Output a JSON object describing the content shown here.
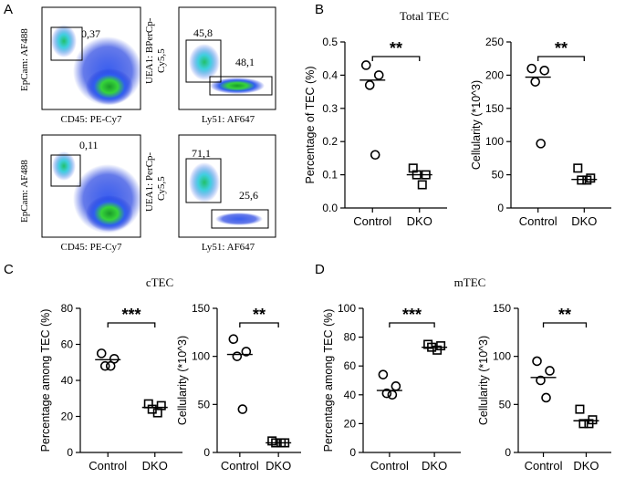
{
  "panel_letters": {
    "a": "A",
    "b": "B",
    "c": "C",
    "d": "D"
  },
  "flow": {
    "plots": [
      {
        "gate_label": "0,37",
        "y_axis": "EpCam: AF488",
        "x_axis": "CD45: PE-Cy7"
      },
      {
        "gate_label_1": "45,8",
        "gate_label_2": "48,1",
        "y_axis_1": "UEA1: BPerCp-",
        "y_axis_2": "Cy5,5",
        "x_axis": "Ly51: AF647"
      },
      {
        "gate_label": "0,11",
        "y_axis": "EpCam: AF488",
        "x_axis": "CD45: PE-Cy7"
      },
      {
        "gate_label_1": "71,1",
        "gate_label_2": "25,6",
        "y_axis_1": "UEA1: PerCp-",
        "y_axis_2": "Cy5,5",
        "x_axis": "Ly51: AF647"
      }
    ]
  },
  "section_titles": {
    "total": "Total TEC",
    "ctec": "cTEC",
    "mtec": "mTEC"
  },
  "colors": {
    "point": "#000000",
    "axis": "#000000",
    "flow_high": "#1fc81f",
    "flow_low": "#1a2fd8"
  },
  "chart_data": [
    {
      "id": "b1",
      "type": "scatter",
      "title": "Total TEC",
      "xlabel": "",
      "ylabel": "Percentage of TEC (%)",
      "categories": [
        "Control",
        "DKO"
      ],
      "ylim": [
        0,
        0.5
      ],
      "yticks": [
        "0.0",
        "0.1",
        "0.2",
        "0.3",
        "0.4",
        "0.5"
      ],
      "ytick_values": [
        0,
        0.1,
        0.2,
        0.3,
        0.4,
        0.5
      ],
      "series": [
        {
          "name": "Control",
          "marker": "circle",
          "values": [
            0.43,
            0.4,
            0.37,
            0.16
          ]
        },
        {
          "name": "DKO",
          "marker": "square",
          "values": [
            0.12,
            0.1,
            0.1,
            0.07
          ]
        }
      ],
      "means": [
        0.385,
        0.1
      ],
      "significance": "**"
    },
    {
      "id": "b2",
      "type": "scatter",
      "title": "",
      "xlabel": "",
      "ylabel": "Cellularity (*10^3)",
      "categories": [
        "Control",
        "DKO"
      ],
      "ylim": [
        0,
        250
      ],
      "yticks": [
        "0",
        "50",
        "100",
        "150",
        "200",
        "250"
      ],
      "ytick_values": [
        0,
        50,
        100,
        150,
        200,
        250
      ],
      "series": [
        {
          "name": "Control",
          "marker": "circle",
          "values": [
            210,
            207,
            190,
            97
          ]
        },
        {
          "name": "DKO",
          "marker": "square",
          "values": [
            60,
            45,
            42,
            42
          ]
        }
      ],
      "means": [
        197,
        43
      ],
      "significance": "**"
    },
    {
      "id": "c1",
      "type": "scatter",
      "title": "cTEC",
      "xlabel": "",
      "ylabel": "Percentage among TEC (%)",
      "categories": [
        "Control",
        "DKO"
      ],
      "ylim": [
        0,
        80
      ],
      "yticks": [
        "0",
        "20",
        "40",
        "60",
        "80"
      ],
      "ytick_values": [
        0,
        20,
        40,
        60,
        80
      ],
      "series": [
        {
          "name": "Control",
          "marker": "circle",
          "values": [
            55,
            52,
            48,
            48
          ]
        },
        {
          "name": "DKO",
          "marker": "square",
          "values": [
            27,
            26,
            24,
            22
          ]
        }
      ],
      "means": [
        51.5,
        25
      ],
      "significance": "***"
    },
    {
      "id": "c2",
      "type": "scatter",
      "title": "",
      "xlabel": "",
      "ylabel": "Cellularity (*10^3)",
      "categories": [
        "Control",
        "DKO"
      ],
      "ylim": [
        0,
        150
      ],
      "yticks": [
        "0",
        "50",
        "100",
        "150"
      ],
      "ytick_values": [
        0,
        50,
        100,
        150
      ],
      "series": [
        {
          "name": "Control",
          "marker": "circle",
          "values": [
            118,
            105,
            100,
            45
          ]
        },
        {
          "name": "DKO",
          "marker": "square",
          "values": [
            12,
            10,
            10,
            10
          ]
        }
      ],
      "means": [
        102,
        10
      ],
      "significance": "**"
    },
    {
      "id": "d1",
      "type": "scatter",
      "title": "mTEC",
      "xlabel": "",
      "ylabel": "Percentage among TEC (%)",
      "categories": [
        "Control",
        "DKO"
      ],
      "ylim": [
        0,
        100
      ],
      "yticks": [
        "0",
        "20",
        "40",
        "60",
        "80",
        "100"
      ],
      "ytick_values": [
        0,
        20,
        40,
        60,
        80,
        100
      ],
      "series": [
        {
          "name": "Control",
          "marker": "circle",
          "values": [
            54,
            46,
            41,
            40
          ]
        },
        {
          "name": "DKO",
          "marker": "square",
          "values": [
            75,
            74,
            73,
            71
          ]
        }
      ],
      "means": [
        43,
        73
      ],
      "significance": "***"
    },
    {
      "id": "d2",
      "type": "scatter",
      "title": "",
      "xlabel": "",
      "ylabel": "Cellularity (*10^3)",
      "categories": [
        "Control",
        "DKO"
      ],
      "ylim": [
        0,
        150
      ],
      "yticks": [
        "0",
        "50",
        "100",
        "150"
      ],
      "ytick_values": [
        0,
        50,
        100,
        150
      ],
      "series": [
        {
          "name": "Control",
          "marker": "circle",
          "values": [
            95,
            85,
            75,
            57
          ]
        },
        {
          "name": "DKO",
          "marker": "square",
          "values": [
            45,
            34,
            30,
            30
          ]
        }
      ],
      "means": [
        78,
        33
      ],
      "significance": "**"
    }
  ]
}
